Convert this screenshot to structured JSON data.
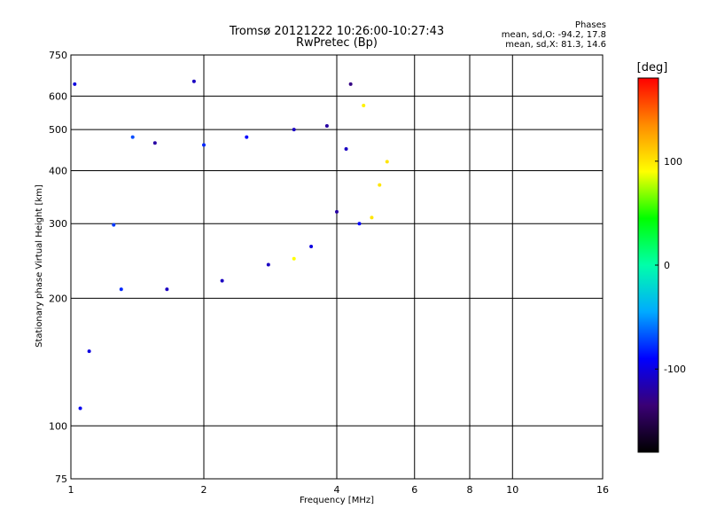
{
  "chart_data": {
    "type": "scatter",
    "title": "Tromsø 20121222 10:26:00-10:27:43",
    "subtitle": "RwPretec (Bp)",
    "stats": {
      "heading": "Phases",
      "line_o": "mean, sd,O: -94.2, 17.8",
      "line_x": "mean, sd,X: 81.3, 14.6"
    },
    "xlabel": "Frequency [MHz]",
    "ylabel": "Stationary phase Virtual Height [km]",
    "x_scale": "log",
    "y_scale": "log",
    "xlim": [
      1,
      16
    ],
    "ylim": [
      75,
      750
    ],
    "x_ticks": [
      1,
      2,
      4,
      6,
      8,
      10,
      16
    ],
    "x_tick_labels": [
      "1",
      "2",
      "4",
      "6",
      "8",
      "10",
      "16"
    ],
    "y_ticks": [
      75,
      100,
      200,
      300,
      400,
      500,
      600,
      750
    ],
    "y_tick_labels": [
      "75",
      "100",
      "200",
      "300",
      "400",
      "500",
      "600",
      "750"
    ],
    "grid": true,
    "colorbar": {
      "label": "[deg]",
      "range": [
        -180,
        180
      ],
      "ticks": [
        100,
        0,
        -100
      ],
      "tick_labels": [
        "100",
        "0",
        "-100"
      ],
      "colors": [
        "#000000",
        "#3a0075",
        "#0000ff",
        "#00aaff",
        "#00ffaa",
        "#00ff00",
        "#ffff00",
        "#ff8c00",
        "#ff0000"
      ]
    },
    "series": [
      {
        "name": "O",
        "points": [
          [
            1.02,
            640,
            -100
          ],
          [
            1.05,
            110,
            -95
          ],
          [
            1.1,
            150,
            -100
          ],
          [
            1.25,
            298,
            -75
          ],
          [
            1.3,
            210,
            -80
          ],
          [
            1.38,
            480,
            -70
          ],
          [
            1.55,
            465,
            -120
          ],
          [
            1.65,
            210,
            -110
          ],
          [
            1.9,
            650,
            -110
          ],
          [
            2.0,
            460,
            -80
          ],
          [
            2.2,
            220,
            -110
          ],
          [
            2.5,
            480,
            -90
          ],
          [
            2.8,
            240,
            -110
          ],
          [
            3.2,
            500,
            -110
          ],
          [
            3.5,
            265,
            -100
          ],
          [
            3.8,
            510,
            -120
          ],
          [
            4.0,
            320,
            -120
          ],
          [
            4.2,
            450,
            -110
          ],
          [
            4.3,
            640,
            -130
          ],
          [
            4.5,
            300,
            -90
          ]
        ]
      },
      {
        "name": "X",
        "points": [
          [
            4.6,
            570,
            95
          ],
          [
            4.8,
            310,
            100
          ],
          [
            5.0,
            370,
            100
          ],
          [
            5.2,
            420,
            100
          ],
          [
            3.2,
            248,
            90
          ]
        ]
      }
    ]
  }
}
